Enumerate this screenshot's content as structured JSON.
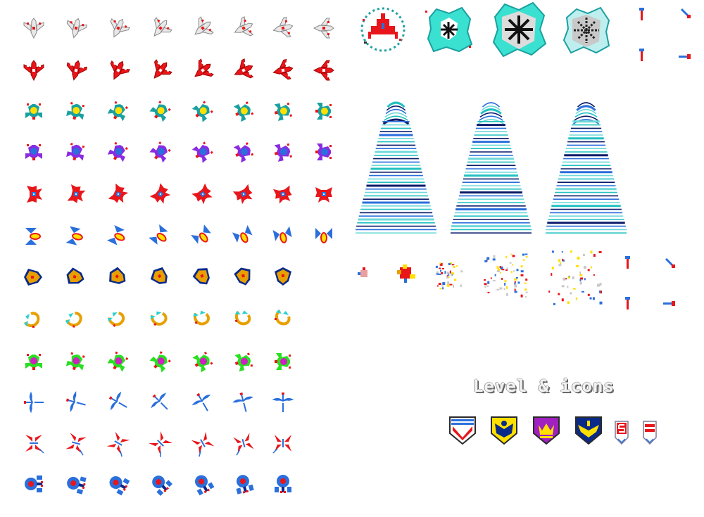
{
  "sheet": {
    "label": "Level & icons",
    "background": "#ffffff"
  },
  "palette": {
    "red": "#e8161b",
    "white": "#e4e4e4",
    "teal": "#1aa0a0",
    "yellow": "#ffe000",
    "purple": "#8a2be2",
    "blue": "#2a6fdc",
    "navy": "#0a2a8a",
    "orange": "#e8a000",
    "green": "#28e020",
    "cyan": "#2ad0d0",
    "magenta": "#d020c0",
    "beam_dark": "#0a1a6a",
    "beam_light": "#20c0c0"
  },
  "enemy_rows": [
    {
      "name": "white-fighter",
      "body": "#e8e8e8",
      "accent": "#e8161b",
      "trim": "#888888",
      "frames": 8
    },
    {
      "name": "red-fighter",
      "body": "#e8161b",
      "accent": "#ffffff",
      "trim": "#a00000",
      "frames": 8
    },
    {
      "name": "teal-bee",
      "body": "#1aa0a0",
      "accent": "#ffe000",
      "trim": "#e8161b",
      "frames": 8
    },
    {
      "name": "purple-bee",
      "body": "#8a2be2",
      "accent": "#2a6fdc",
      "trim": "#e8161b",
      "frames": 8
    },
    {
      "name": "red-crab",
      "body": "#e8161b",
      "accent": "#2a6fdc",
      "trim": "#ffffff",
      "frames": 8
    },
    {
      "name": "blue-wasp",
      "body": "#2a6fdc",
      "accent": "#ffe000",
      "trim": "#e8161b",
      "frames": 8
    },
    {
      "name": "orange-moth",
      "body": "#e8a000",
      "accent": "#0a2a8a",
      "trim": "#e8161b",
      "frames": 7
    },
    {
      "name": "cyan-scorpion",
      "body": "#e8a000",
      "accent": "#2ad0d0",
      "trim": "#e8161b",
      "frames": 7
    },
    {
      "name": "green-beetle",
      "body": "#28e020",
      "accent": "#d020c0",
      "trim": "#e8161b",
      "frames": 7
    },
    {
      "name": "blue-dragonfly",
      "body": "#2a6fdc",
      "accent": "#ffffff",
      "trim": "#e8161b",
      "frames": 7
    },
    {
      "name": "red-mosquito",
      "body": "#e8161b",
      "accent": "#2a6fdc",
      "trim": "#ffffff",
      "frames": 7
    },
    {
      "name": "blue-boss",
      "body": "#2a6fdc",
      "accent": "#e8161b",
      "trim": "#0a2a8a",
      "frames": 7
    }
  ],
  "level_icons": [
    {
      "name": "red-chevron-badge",
      "color": "#e8161b",
      "bg": "#ffffff"
    },
    {
      "name": "eagle-badge",
      "color": "#0a2a8a",
      "bg": "#ffe000"
    },
    {
      "name": "crown-badge",
      "color": "#ffe000",
      "bg": "#a020c0"
    },
    {
      "name": "bird-badge",
      "color": "#ffe000",
      "bg": "#0a2a8a"
    },
    {
      "name": "five-badge",
      "color": "#e8161b",
      "bg": "#ffffff"
    },
    {
      "name": "one-badge",
      "color": "#e8161b",
      "bg": "#ffffff"
    }
  ]
}
